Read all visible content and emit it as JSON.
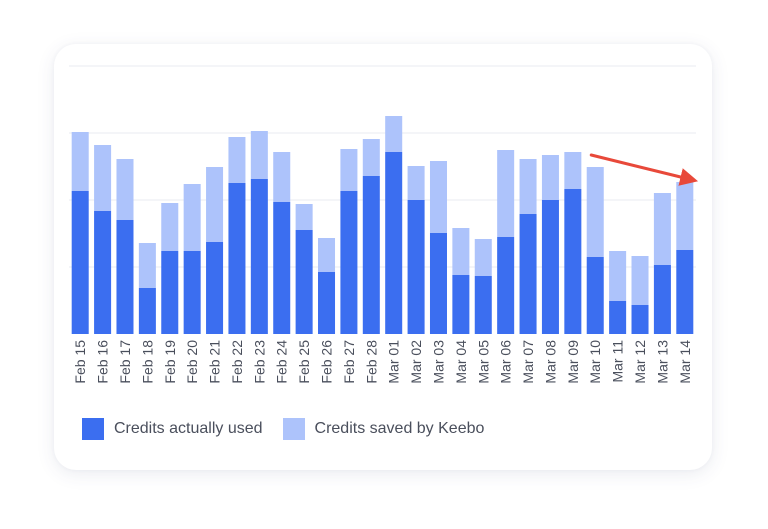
{
  "chart_data": {
    "type": "bar",
    "stacked": true,
    "categories": [
      "Feb 15",
      "Feb 16",
      "Feb 17",
      "Feb 18",
      "Feb 19",
      "Feb 20",
      "Feb 21",
      "Feb 22",
      "Feb 23",
      "Feb 24",
      "Feb 25",
      "Feb 26",
      "Feb 27",
      "Feb 28",
      "Mar 01",
      "Mar 02",
      "Mar 03",
      "Mar 04",
      "Mar 05",
      "Mar 06",
      "Mar 07",
      "Mar 08",
      "Mar 09",
      "Mar 10",
      "Mar 11",
      "Mar 12",
      "Mar 13",
      "Mar 14"
    ],
    "series": [
      {
        "name": "Credits actually used",
        "color": "#3b6ef0",
        "values": [
          143,
          123,
          114,
          46,
          83,
          83,
          92,
          151,
          155,
          132,
          104,
          62,
          143,
          158,
          182,
          134,
          101,
          59,
          58,
          97,
          120,
          134,
          145,
          77,
          33,
          29,
          69,
          84
        ]
      },
      {
        "name": "Credits saved by Keebo",
        "color": "#adc3fb",
        "values": [
          59,
          66,
          61,
          45,
          48,
          67,
          75,
          46,
          48,
          50,
          26,
          34,
          42,
          37,
          36,
          34,
          72,
          47,
          37,
          87,
          55,
          45,
          37,
          90,
          50,
          49,
          72,
          68
        ]
      }
    ],
    "ylim": [
      0,
      268
    ],
    "gridlines": [
      67,
      134,
      201,
      268
    ],
    "grid": true,
    "legend_position": "bottom-left",
    "annotation": {
      "type": "arrow",
      "color": "#e8493a",
      "from_category": "Mar 10",
      "to_category": "Mar 14"
    }
  }
}
